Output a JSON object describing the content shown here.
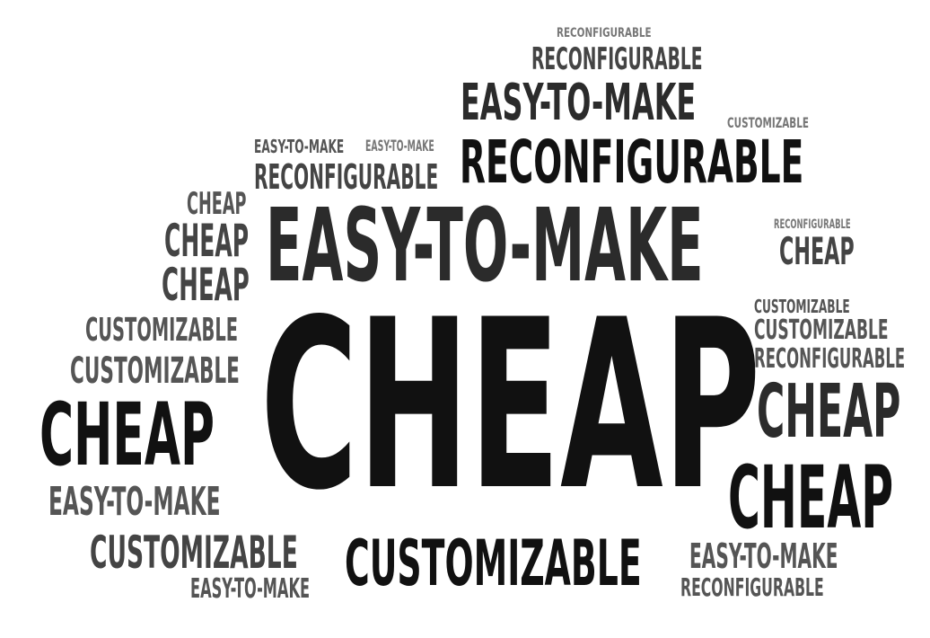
{
  "words": {
    "w1": "RECONFIGURABLE",
    "w2": "RECONFIGURABLE",
    "w3": "EASY-TO-MAKE",
    "w4": "CUSTOMIZABLE",
    "w5": "EASY-TO-MAKE",
    "w6": "EASY-TO-MAKE",
    "w7": "RECONFIGURABLE",
    "w8": "RECONFIGURABLE",
    "w9": "CHEAP",
    "w10": "CHEAP",
    "w11": "EASY-TO-MAKE",
    "w12": "RECONFIGURABLE",
    "w13": "CHEAP",
    "w14": "CHEAP",
    "w15": "CUSTOMIZABLE",
    "w16": "CUSTOMIZABLE",
    "w17": "CUSTOMIZABLE",
    "w18": "RECONFIGURABLE",
    "w19": "CUSTOMIZABLE",
    "w20": "CHEAP",
    "w21": "CHEAP",
    "w22": "CHEAP",
    "w23": "EASY-TO-MAKE",
    "w24": "CHEAP",
    "w25": "CUSTOMIZABLE",
    "w26": "CUSTOMIZABLE",
    "w27": "EASY-TO-MAKE",
    "w28": "EASY-TO-MAKE",
    "w29": "RECONFIGURABLE"
  },
  "colors": {
    "background": "#ffffff",
    "black": "#111111",
    "dark": "#2b2b2b",
    "mid": "#444444",
    "gray": "#555555",
    "light": "#777777"
  }
}
